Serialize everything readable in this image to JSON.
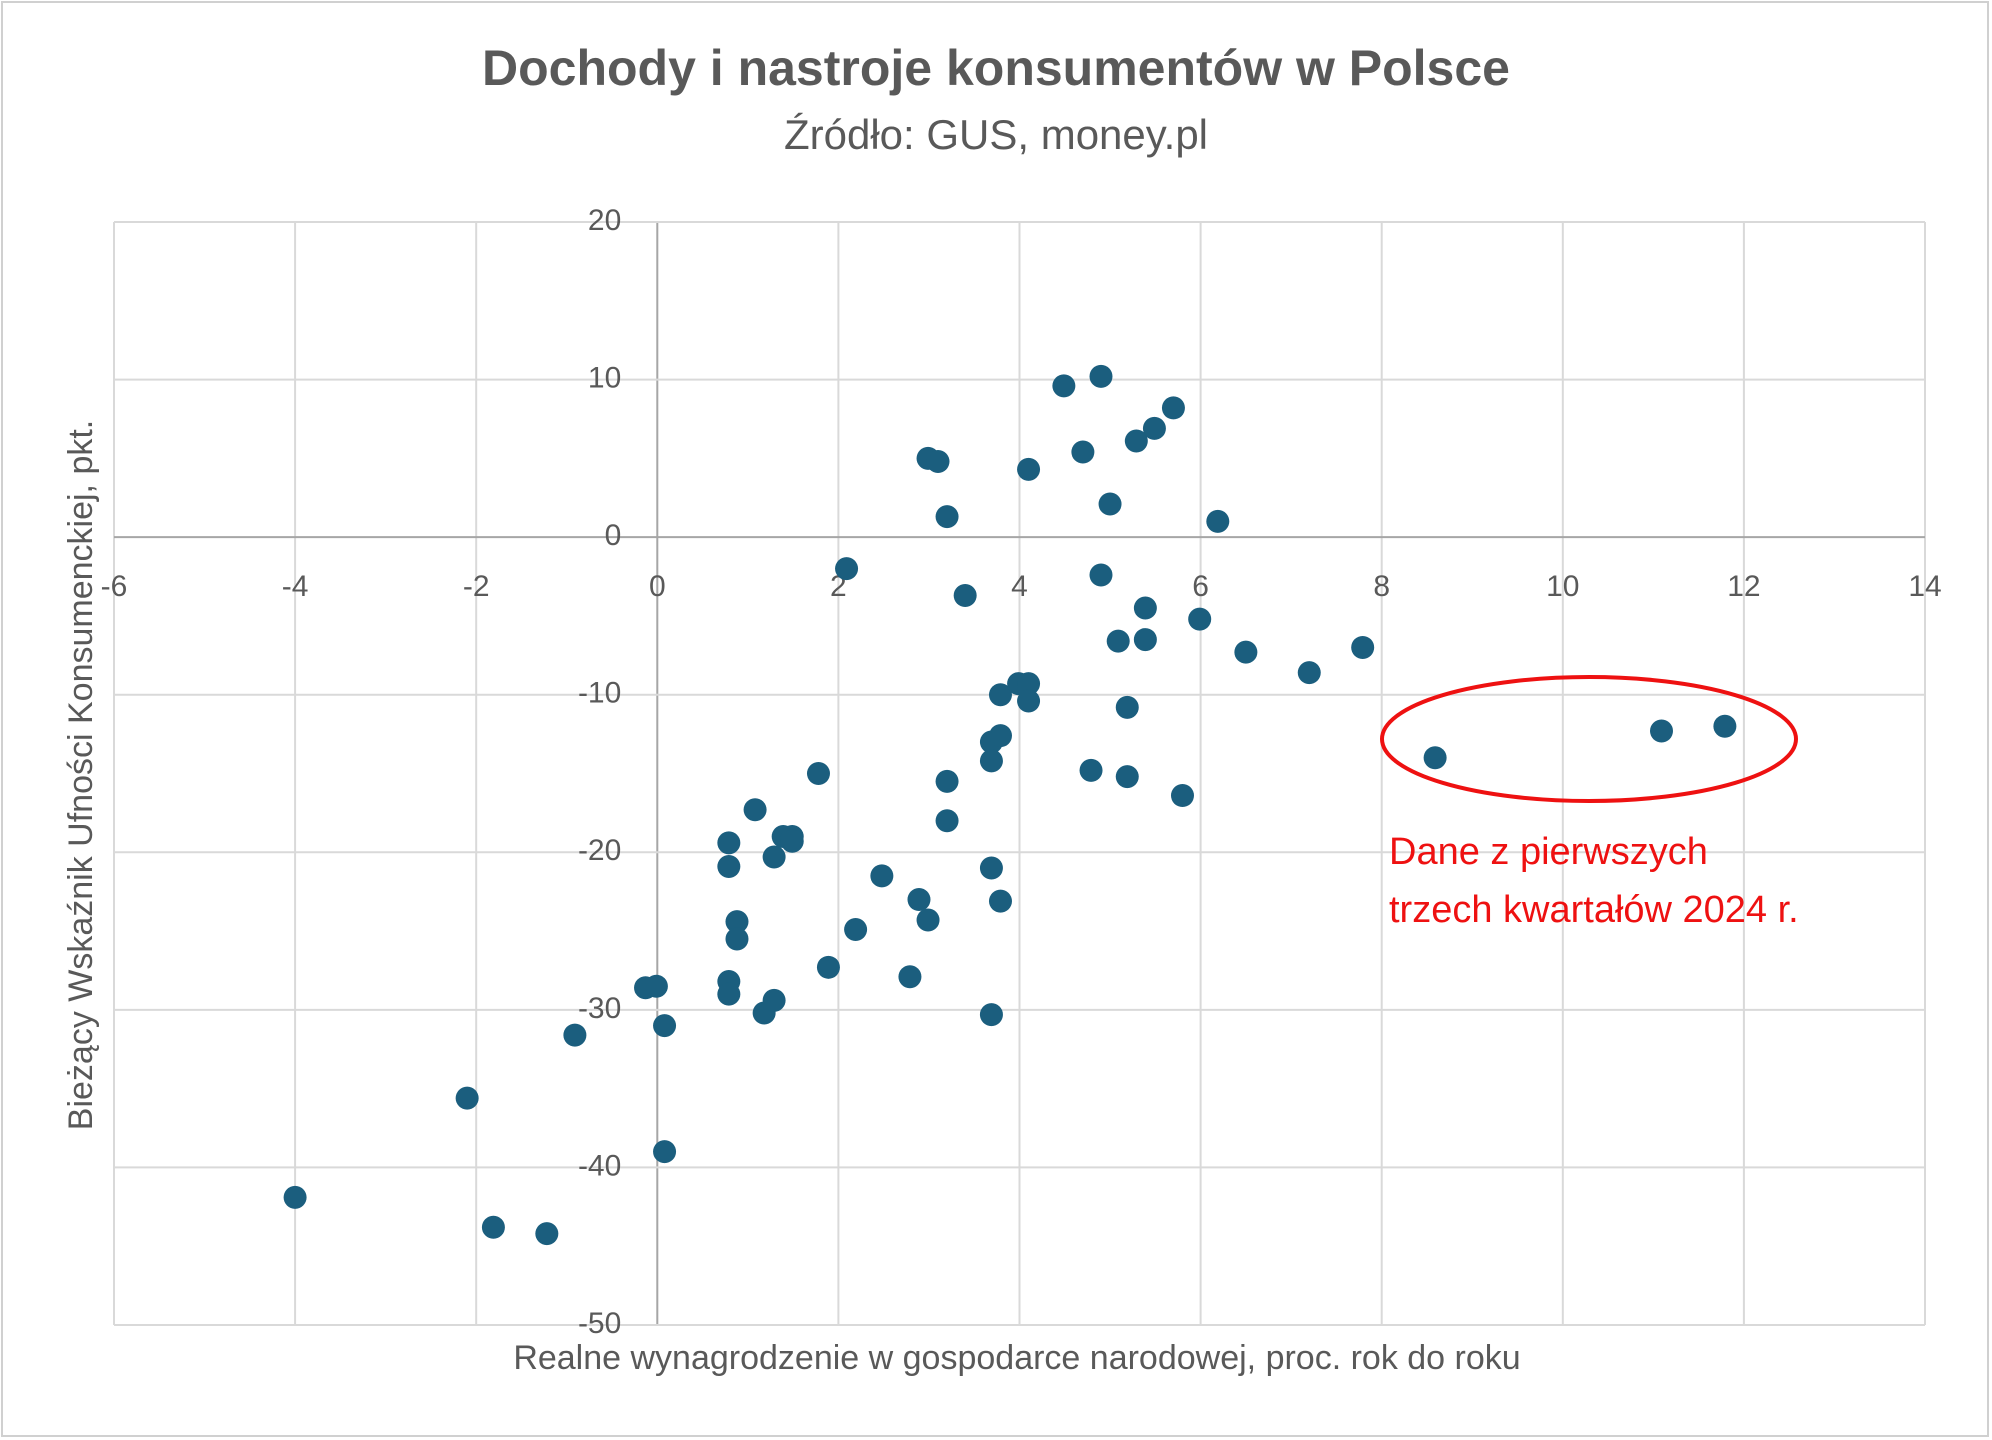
{
  "chart_data": {
    "type": "scatter",
    "title": "Dochody i nastroje konsumentów w Polsce",
    "subtitle": "Źródło: GUS, money.pl",
    "x_label": "Realne wynagrodzenie w gospodarce narodowej, proc. rok do roku",
    "y_label": "Bieżący Wskaźnik Ufności Konsumenckiej, pkt.",
    "annotation": [
      "Dane z pierwszych",
      "trzech kwartałów 2024 r."
    ],
    "color": "#1b5e7e",
    "annotation_color": "#ee1111",
    "grid": true,
    "xlim": [
      -6,
      14
    ],
    "xticks": [
      -6,
      -4,
      -2,
      0,
      2,
      4,
      6,
      8,
      10,
      12,
      14
    ],
    "ylim": [
      -50,
      20
    ],
    "yticks": [
      -50,
      -40,
      -30,
      -20,
      -10,
      0,
      10,
      20
    ],
    "x": [
      -4,
      -2.1,
      -1.81,
      -1.22,
      -0.91,
      -0.13,
      -0.01,
      0.08,
      0.08,
      0.79,
      0.79,
      0.79,
      0.79,
      0.88,
      0.88,
      1.08,
      1.18,
      1.29,
      1.29,
      1.39,
      1.49,
      1.49,
      1.78,
      1.89,
      2.09,
      2.19,
      2.48,
      2.79,
      2.89,
      2.99,
      3.1,
      2.99,
      3.2,
      3.2,
      3.2,
      3.4,
      3.69,
      3.69,
      3.69,
      3.69,
      3.79,
      3.79,
      3.79,
      3.99,
      4.1,
      4.1,
      4.1,
      4.49,
      4.7,
      4.79,
      4.9,
      4.9,
      5.0,
      5.09,
      5.19,
      5.19,
      5.29,
      5.39,
      5.39,
      5.49,
      5.7,
      5.8,
      5.99,
      6.19,
      6.5,
      7.2,
      7.79,
      8.59,
      11.09,
      11.79
    ],
    "y": [
      -41.9,
      -35.6,
      -43.8,
      -44.2,
      -31.6,
      -28.6,
      -28.5,
      -31.0,
      -39.0,
      -19.4,
      -20.9,
      -28.2,
      -29.0,
      -24.4,
      -25.5,
      -17.3,
      -30.2,
      -20.3,
      -29.4,
      -19.0,
      -19.0,
      -19.3,
      -15.0,
      -27.3,
      -2.0,
      -24.9,
      -21.5,
      -27.9,
      -23.0,
      5.0,
      4.8,
      -24.3,
      1.3,
      -15.5,
      -18.0,
      -3.7,
      -13.0,
      -14.2,
      -21.0,
      -30.3,
      -10.0,
      -12.6,
      -23.1,
      -9.3,
      -9.3,
      -10.4,
      4.3,
      9.6,
      5.4,
      -14.8,
      10.2,
      -2.4,
      2.1,
      -6.6,
      -10.8,
      -15.2,
      6.1,
      -4.5,
      -6.5,
      6.9,
      8.2,
      -16.4,
      -5.2,
      1.0,
      -7.3,
      -8.6,
      -7.0,
      -14.0,
      -12.3,
      -12.0
    ]
  }
}
